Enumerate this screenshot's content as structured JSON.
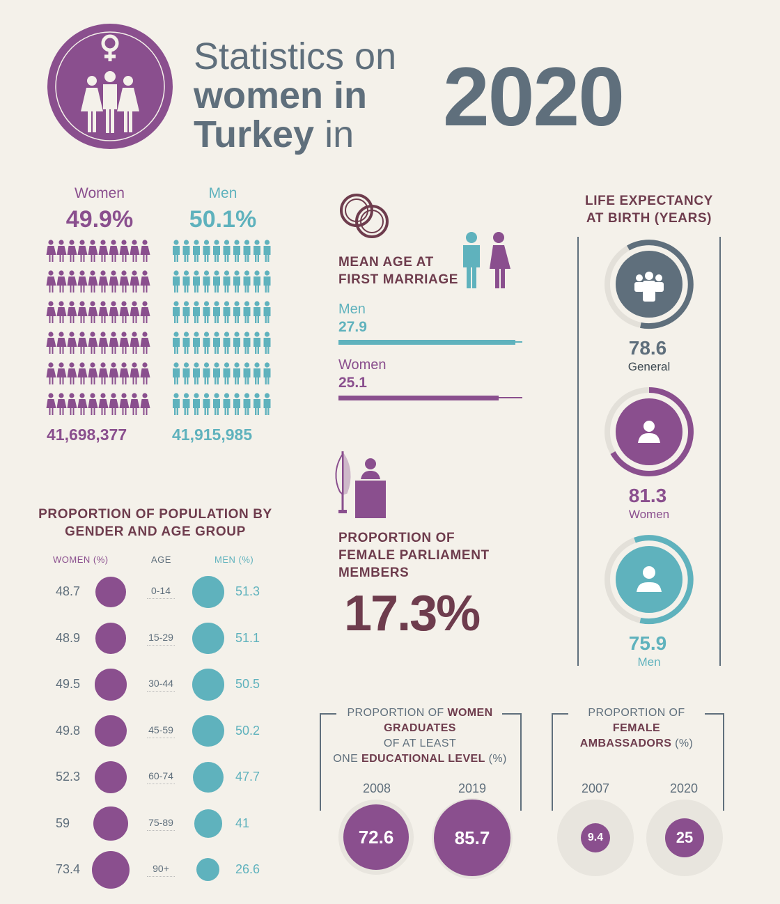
{
  "header": {
    "line1": "Statistics on",
    "line2": "women in",
    "line3_bold": "Turkey",
    "line3_light": " in",
    "year": "2020"
  },
  "population": {
    "women_label": "Women",
    "women_pct": "49.9%",
    "women_count": "41,698,377",
    "men_label": "Men",
    "men_pct": "50.1%",
    "men_count": "41,915,985"
  },
  "marriage": {
    "title_line1": "MEAN AGE AT",
    "title_line2": "FIRST MARRIAGE",
    "men_label": "Men",
    "men_value": "27.9",
    "women_label": "Women",
    "women_value": "25.1"
  },
  "parliament": {
    "title_line1": "PROPORTION OF",
    "title_line2": "FEMALE PARLIAMENT",
    "title_line3": "MEMBERS",
    "value": "17.3%"
  },
  "life_expectancy": {
    "title_line1": "LIFE EXPECTANCY",
    "title_line2": "AT BIRTH  (YEARS)",
    "general_value": "78.6",
    "general_label": "General",
    "women_value": "81.3",
    "women_label": "Women",
    "men_value": "75.9",
    "men_label": "Men"
  },
  "age_group": {
    "title_line1": "PROPORTION OF POPULATION BY",
    "title_line2": "GENDER AND AGE GROUP",
    "women_header": "WOMEN (%)",
    "age_header": "AGE",
    "men_header": "MEN (%)",
    "rows": [
      {
        "women": "48.7",
        "age": "0-14",
        "men": "51.3"
      },
      {
        "women": "48.9",
        "age": "15-29",
        "men": "51.1"
      },
      {
        "women": "49.5",
        "age": "30-44",
        "men": "50.5"
      },
      {
        "women": "49.8",
        "age": "45-59",
        "men": "50.2"
      },
      {
        "women": "52.3",
        "age": "60-74",
        "men": "47.7"
      },
      {
        "women": "59",
        "age": "75-89",
        "men": "41"
      },
      {
        "women": "73.4",
        "age": "90+",
        "men": "26.6"
      }
    ]
  },
  "graduates": {
    "title_a": "PROPORTION OF ",
    "title_b": "WOMEN",
    "title_c": "GRADUATES",
    "title_d": "OF AT LEAST",
    "title_e": "ONE ",
    "title_f": "EDUCATIONAL LEVEL",
    "title_g": " (%)",
    "year1": "2008",
    "value1": "72.6",
    "year2": "2019",
    "value2": "85.7"
  },
  "ambassadors": {
    "title_a": "PROPORTION OF",
    "title_b": "FEMALE",
    "title_c": "AMBASSADORS",
    "title_d": " (%)",
    "year1": "2007",
    "value1": "9.4",
    "year2": "2020",
    "value2": "25"
  },
  "colors": {
    "purple": "#8a4f8e",
    "teal": "#5fb2bd",
    "slate": "#5f6f7c",
    "maroon": "#6e3c4d",
    "background": "#f4f1ea"
  }
}
